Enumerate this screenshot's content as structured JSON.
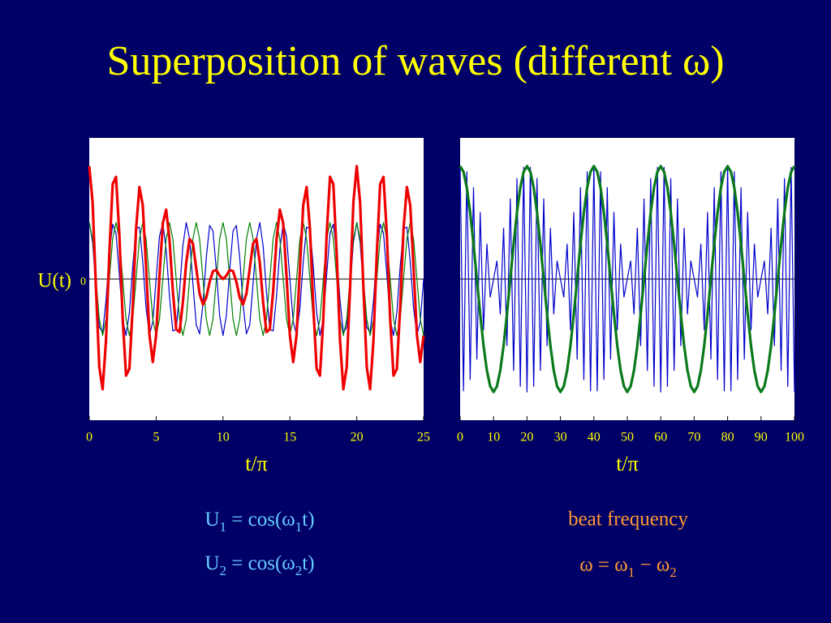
{
  "title": "Superposition of waves (different ω)",
  "chart_data": [
    {
      "type": "line",
      "ylabel": "U(t)",
      "xlabel": "t/π",
      "xlim": [
        0,
        25
      ],
      "xticks": [
        0,
        5,
        10,
        15,
        20,
        25
      ],
      "ylim": [
        -2.5,
        2.5
      ],
      "yticks": [
        0
      ],
      "zero_line": true,
      "x": [
        0,
        0.25,
        0.5,
        0.75,
        1,
        1.25,
        1.5,
        1.75,
        2,
        2.25,
        2.5,
        2.75,
        3,
        3.25,
        3.5,
        3.75,
        4,
        4.25,
        4.5,
        4.75,
        5,
        5.25,
        5.5,
        5.75,
        6,
        6.25,
        6.5,
        6.75,
        7,
        7.25,
        7.5,
        7.75,
        8,
        8.25,
        8.5,
        8.75,
        9,
        9.25,
        9.5,
        9.75,
        10,
        10.25,
        10.5,
        10.75,
        11,
        11.25,
        11.5,
        11.75,
        12,
        12.25,
        12.5,
        12.75,
        13,
        13.25,
        13.5,
        13.75,
        14,
        14.25,
        14.5,
        14.75,
        15,
        15.25,
        15.5,
        15.75,
        16,
        16.25,
        16.5,
        16.75,
        17,
        17.25,
        17.5,
        17.75,
        18,
        18.25,
        18.5,
        18.75,
        19,
        19.25,
        19.5,
        19.75,
        20,
        20.25,
        20.5,
        20.75,
        21,
        21.25,
        21.5,
        21.75,
        22,
        22.25,
        22.5,
        22.75,
        23,
        23.25,
        23.5,
        23.75,
        24,
        24.25,
        24.5,
        24.75,
        25
      ],
      "series": [
        {
          "color": "#0000cc",
          "values": [
            1,
            0.65,
            -0.16,
            -0.85,
            -0.95,
            -0.38,
            0.45,
            0.97,
            0.81,
            0.08,
            -0.71,
            -1,
            -0.59,
            0.23,
            0.89,
            0.92,
            0.31,
            -0.52,
            -0.99,
            -0.76,
            0,
            0.76,
            0.99,
            0.52,
            -0.31,
            -0.92,
            -0.89,
            -0.23,
            0.59,
            1,
            0.71,
            -0.08,
            -0.81,
            -0.97,
            -0.45,
            0.38,
            0.95,
            0.85,
            0.16,
            -0.65,
            -1,
            -0.65,
            0.16,
            0.85,
            0.95,
            0.38,
            -0.45,
            -0.97,
            -0.81,
            -0.08,
            0.71,
            1,
            0.59,
            -0.23,
            -0.89,
            -0.92,
            -0.31,
            0.52,
            0.99,
            0.76,
            0,
            -0.76,
            -0.99,
            -0.52,
            0.31,
            0.92,
            0.89,
            0.23,
            -0.59,
            -1,
            -0.71,
            0.08,
            0.81,
            0.97,
            0.45,
            -0.38,
            -0.95,
            -0.85,
            -0.16,
            0.65,
            1,
            0.65,
            -0.16,
            -0.85,
            -0.95,
            -0.38,
            0.45,
            0.97,
            0.81,
            0.08,
            -0.71,
            -1,
            -0.59,
            0.23,
            0.89,
            0.92,
            0.31,
            -0.52,
            -0.99,
            -0.76,
            0
          ]
        },
        {
          "color": "#008000",
          "values": [
            1,
            0.71,
            0,
            -0.71,
            -1,
            -0.71,
            0,
            0.71,
            1,
            0.71,
            0,
            -0.71,
            -1,
            -0.71,
            0,
            0.71,
            1,
            0.71,
            0,
            -0.71,
            -1,
            -0.71,
            0,
            0.71,
            1,
            0.71,
            0,
            -0.71,
            -1,
            -0.71,
            0,
            0.71,
            1,
            0.71,
            0,
            -0.71,
            -1,
            -0.71,
            0,
            0.71,
            1,
            0.71,
            0,
            -0.71,
            -1,
            -0.71,
            0,
            0.71,
            1,
            0.71,
            0,
            -0.71,
            -1,
            -0.71,
            0,
            0.71,
            1,
            0.71,
            0,
            -0.71,
            -1,
            -0.71,
            0,
            0.71,
            1,
            0.71,
            0,
            -0.71,
            -1,
            -0.71,
            0,
            0.71,
            1,
            0.71,
            0,
            -0.71,
            -1,
            -0.71,
            0,
            0.71,
            1,
            0.71,
            0,
            -0.71,
            -1,
            -0.71,
            0,
            0.71,
            1,
            0.71,
            0,
            -0.71,
            -1,
            -0.71,
            0,
            0.71,
            1,
            0.71,
            0,
            -0.71,
            -1
          ]
        },
        {
          "color": "#ee0000",
          "values": [
            2,
            1.36,
            -0.16,
            -1.56,
            -1.95,
            -1.09,
            0.45,
            1.68,
            1.81,
            0.79,
            -0.71,
            -1.71,
            -1.59,
            -0.48,
            0.89,
            1.63,
            1.31,
            0.19,
            -0.99,
            -1.47,
            -1,
            0.05,
            0.99,
            1.23,
            0.69,
            -0.21,
            -0.89,
            -0.94,
            -0.41,
            0.29,
            0.71,
            0.63,
            0.19,
            -0.26,
            -0.45,
            -0.33,
            -0.05,
            0.14,
            0.16,
            0.06,
            0,
            0.06,
            0.16,
            0.14,
            -0.05,
            -0.33,
            -0.45,
            -0.26,
            0.19,
            0.63,
            0.71,
            0.29,
            -0.41,
            -0.94,
            -0.89,
            -0.21,
            0.69,
            1.23,
            0.99,
            0.05,
            -1,
            -1.47,
            -0.99,
            0.19,
            1.31,
            1.63,
            0.89,
            -0.48,
            -1.59,
            -1.71,
            -0.71,
            0.79,
            1.81,
            1.68,
            0.45,
            -1.09,
            -1.95,
            -1.56,
            -0.16,
            1.36,
            2,
            1.36,
            -0.16,
            -1.56,
            -1.95,
            -1.09,
            0.45,
            1.68,
            1.81,
            0.79,
            -0.71,
            -1.71,
            -1.59,
            -0.48,
            0.89,
            1.63,
            1.31,
            0.19,
            -0.99,
            -1.47,
            -1
          ]
        }
      ]
    },
    {
      "type": "line",
      "xlabel": "t/π",
      "xlim": [
        0,
        100
      ],
      "xticks": [
        0,
        10,
        20,
        30,
        40,
        50,
        60,
        70,
        80,
        90,
        100
      ],
      "ylim": [
        -1.25,
        1.25
      ],
      "zero_line": true,
      "x": [
        0,
        1,
        2,
        3,
        4,
        5,
        6,
        7,
        8,
        9,
        10,
        11,
        12,
        13,
        14,
        15,
        16,
        17,
        18,
        19,
        20,
        21,
        22,
        23,
        24,
        25,
        26,
        27,
        28,
        29,
        30,
        31,
        32,
        33,
        34,
        35,
        36,
        37,
        38,
        39,
        40,
        41,
        42,
        43,
        44,
        45,
        46,
        47,
        48,
        49,
        50,
        51,
        52,
        53,
        54,
        55,
        56,
        57,
        58,
        59,
        60,
        61,
        62,
        63,
        64,
        65,
        66,
        67,
        68,
        69,
        70,
        71,
        72,
        73,
        74,
        75,
        76,
        77,
        78,
        79,
        80,
        81,
        82,
        83,
        84,
        85,
        86,
        87,
        88,
        89,
        90,
        91,
        92,
        93,
        94,
        95,
        96,
        97,
        98,
        99,
        100
      ],
      "series": [
        {
          "color": "#0000cc",
          "values": [
            1,
            -0.99,
            0.95,
            -0.89,
            0.81,
            -0.71,
            0.59,
            -0.45,
            0.31,
            -0.16,
            0,
            0.16,
            -0.31,
            0.45,
            -0.59,
            0.71,
            -0.81,
            0.89,
            -0.95,
            0.99,
            -1,
            0.99,
            -0.95,
            0.89,
            -0.81,
            0.71,
            -0.59,
            0.45,
            -0.31,
            0.16,
            0,
            -0.16,
            0.31,
            -0.45,
            0.59,
            -0.71,
            0.81,
            -0.89,
            0.95,
            -0.99,
            1,
            -0.99,
            0.95,
            -0.89,
            0.81,
            -0.71,
            0.59,
            -0.45,
            0.31,
            -0.16,
            0,
            0.16,
            -0.31,
            0.45,
            -0.59,
            0.71,
            -0.81,
            0.89,
            -0.95,
            0.99,
            -1,
            0.99,
            -0.95,
            0.89,
            -0.81,
            0.71,
            -0.59,
            0.45,
            -0.31,
            0.16,
            0,
            -0.16,
            0.31,
            -0.45,
            0.59,
            -0.71,
            0.81,
            -0.89,
            0.95,
            -0.99,
            1,
            -0.99,
            0.95,
            -0.89,
            0.81,
            -0.71,
            0.59,
            -0.45,
            0.31,
            -0.16,
            0,
            0.16,
            -0.31,
            0.45,
            -0.59,
            0.71,
            -0.81,
            0.89,
            -0.95,
            0.99,
            -1
          ]
        },
        {
          "color": "#0a7a1a",
          "values": [
            1,
            0.95,
            0.81,
            0.59,
            0.31,
            0,
            -0.31,
            -0.59,
            -0.81,
            -0.95,
            -1,
            -0.95,
            -0.81,
            -0.59,
            -0.31,
            0,
            0.31,
            0.59,
            0.81,
            0.95,
            1,
            0.95,
            0.81,
            0.59,
            0.31,
            0,
            -0.31,
            -0.59,
            -0.81,
            -0.95,
            -1,
            -0.95,
            -0.81,
            -0.59,
            -0.31,
            0,
            0.31,
            0.59,
            0.81,
            0.95,
            1,
            0.95,
            0.81,
            0.59,
            0.31,
            0,
            -0.31,
            -0.59,
            -0.81,
            -0.95,
            -1,
            -0.95,
            -0.81,
            -0.59,
            -0.31,
            0,
            0.31,
            0.59,
            0.81,
            0.95,
            1,
            0.95,
            0.81,
            0.59,
            0.31,
            0,
            -0.31,
            -0.59,
            -0.81,
            -0.95,
            -1,
            -0.95,
            -0.81,
            -0.59,
            -0.31,
            0,
            0.31,
            0.59,
            0.81,
            0.95,
            1,
            0.95,
            0.81,
            0.59,
            0.31,
            0,
            -0.31,
            -0.59,
            -0.81,
            -0.95,
            -1,
            -0.95,
            -0.81,
            -0.59,
            -0.31,
            0,
            0.31,
            0.59,
            0.81,
            0.95,
            1
          ]
        }
      ]
    }
  ],
  "equations": [
    [
      "U",
      "1",
      " = cos(ω",
      "1",
      "t)"
    ],
    [
      "U",
      "2",
      " = cos(ω",
      "2",
      "t)"
    ]
  ],
  "beat": {
    "label": "beat frequency",
    "formula": [
      "ω = ω",
      "1",
      " − ω",
      "2"
    ]
  }
}
